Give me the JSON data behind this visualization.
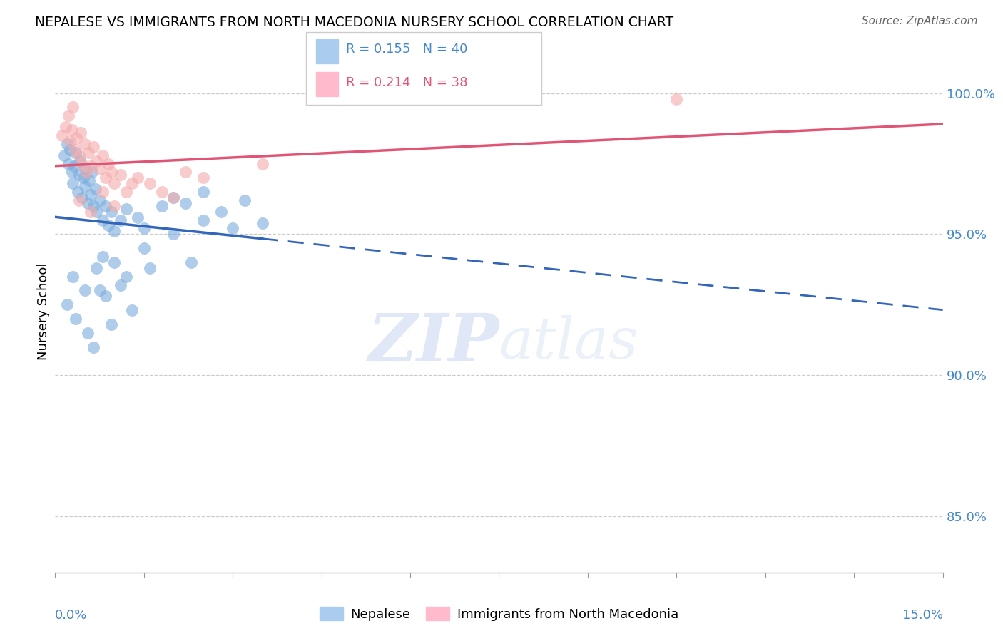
{
  "title": "NEPALESE VS IMMIGRANTS FROM NORTH MACEDONIA NURSERY SCHOOL CORRELATION CHART",
  "source": "Source: ZipAtlas.com",
  "ylabel": "Nursery School",
  "xlim": [
    0.0,
    15.0
  ],
  "ylim": [
    83.0,
    101.5
  ],
  "yticks": [
    85.0,
    90.0,
    95.0,
    100.0
  ],
  "ytick_labels": [
    "85.0%",
    "90.0%",
    "95.0%",
    "100.0%"
  ],
  "R_blue": 0.155,
  "N_blue": 40,
  "R_pink": 0.214,
  "N_pink": 38,
  "blue_scatter_color": "#7AACDC",
  "pink_scatter_color": "#F4AAAA",
  "blue_line_color": "#3366BB",
  "pink_line_color": "#E05575",
  "axis_label_color": "#4488CC",
  "legend_r_blue_color": "#4488CC",
  "legend_r_pink_color": "#E05575",
  "nepalese_x": [
    0.15,
    0.2,
    0.22,
    0.25,
    0.28,
    0.3,
    0.32,
    0.35,
    0.38,
    0.4,
    0.42,
    0.45,
    0.48,
    0.5,
    0.52,
    0.55,
    0.58,
    0.6,
    0.62,
    0.65,
    0.68,
    0.7,
    0.75,
    0.8,
    0.85,
    0.9,
    0.95,
    1.0,
    1.1,
    1.2,
    1.4,
    1.5,
    1.8,
    2.0,
    2.2,
    2.5,
    2.8,
    3.2,
    3.5,
    2.3
  ],
  "nepalese_y": [
    97.8,
    98.2,
    97.5,
    98.0,
    97.2,
    96.8,
    97.4,
    97.9,
    96.5,
    97.1,
    97.6,
    96.3,
    97.0,
    96.7,
    97.3,
    96.1,
    96.9,
    96.4,
    97.2,
    96.0,
    96.6,
    95.8,
    96.2,
    95.5,
    96.0,
    95.3,
    95.8,
    95.1,
    95.5,
    95.9,
    95.6,
    95.2,
    96.0,
    96.3,
    96.1,
    96.5,
    95.8,
    96.2,
    95.4,
    94.0
  ],
  "nepalese_x2": [
    0.3,
    0.5,
    0.7,
    0.8,
    1.0,
    1.2,
    1.5,
    2.0,
    2.5,
    3.0,
    0.2,
    0.35,
    0.55,
    0.65,
    0.75,
    0.85,
    0.95,
    1.1,
    1.3,
    1.6
  ],
  "nepalese_y2": [
    93.5,
    93.0,
    93.8,
    94.2,
    94.0,
    93.5,
    94.5,
    95.0,
    95.5,
    95.2,
    92.5,
    92.0,
    91.5,
    91.0,
    93.0,
    92.8,
    91.8,
    93.2,
    92.3,
    93.8
  ],
  "macedonia_x": [
    0.12,
    0.18,
    0.22,
    0.25,
    0.28,
    0.3,
    0.33,
    0.36,
    0.4,
    0.43,
    0.46,
    0.5,
    0.53,
    0.56,
    0.6,
    0.65,
    0.7,
    0.75,
    0.8,
    0.85,
    0.9,
    0.95,
    1.0,
    1.1,
    1.2,
    1.4,
    1.6,
    2.0,
    2.5,
    3.5,
    0.4,
    0.6,
    0.8,
    1.0,
    1.3,
    1.8,
    2.2,
    10.5
  ],
  "macedonia_y": [
    98.5,
    98.8,
    99.2,
    98.3,
    98.7,
    99.5,
    98.0,
    98.4,
    97.8,
    98.6,
    97.5,
    98.2,
    97.2,
    97.9,
    97.4,
    98.1,
    97.6,
    97.3,
    97.8,
    97.0,
    97.5,
    97.2,
    96.8,
    97.1,
    96.5,
    97.0,
    96.8,
    96.3,
    97.0,
    97.5,
    96.2,
    95.8,
    96.5,
    96.0,
    96.8,
    96.5,
    97.2,
    99.8
  ],
  "watermark_zip": "ZIP",
  "watermark_atlas": "atlas",
  "background_color": "#FFFFFF",
  "grid_color": "#CCCCCC",
  "dashed_line_start": 3.5
}
